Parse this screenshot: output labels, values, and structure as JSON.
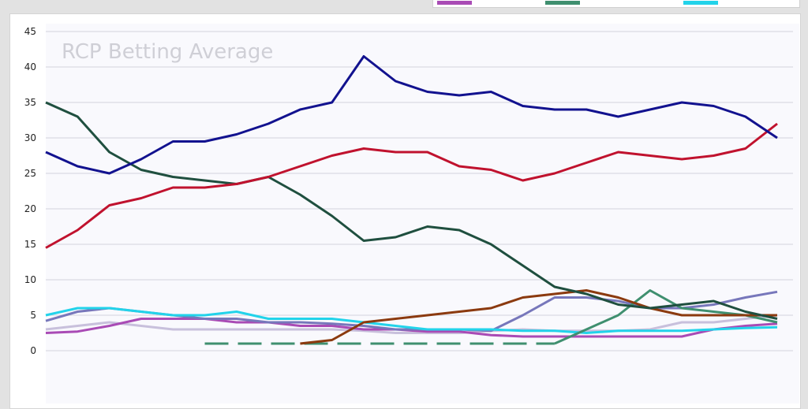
{
  "legend": {
    "swatches": [
      {
        "color": "#a94bb5"
      },
      {
        "color": "#3f8f6f"
      },
      {
        "color": "#22d3ea"
      }
    ]
  },
  "chart_data": {
    "type": "line",
    "title": "RCP Betting Average",
    "xlabel": "",
    "ylabel": "",
    "ylim": [
      0,
      45
    ],
    "yticks": [
      "0",
      "5",
      "10",
      "15",
      "20",
      "25",
      "30",
      "35",
      "40",
      "45"
    ],
    "grid": true,
    "x": [
      0,
      1,
      2,
      3,
      4,
      5,
      6,
      7,
      8,
      9,
      10,
      11,
      12,
      13,
      14,
      15,
      16,
      17,
      18,
      19,
      20,
      21,
      22,
      23
    ],
    "series": [
      {
        "color": "#c8c0dc",
        "values": [
          3,
          3.5,
          4,
          3.5,
          3,
          3,
          3,
          3,
          3,
          3,
          2.8,
          2.5,
          2.5,
          2.5,
          2.8,
          3,
          2.8,
          2.8,
          2.8,
          3,
          4,
          4,
          4.5,
          5
        ]
      },
      {
        "color": "#a94bb5",
        "values": [
          2.5,
          2.7,
          3.5,
          4.5,
          4.5,
          4.5,
          4,
          4,
          3.5,
          3.5,
          3,
          3,
          2.7,
          2.7,
          2.2,
          2,
          2,
          2,
          2,
          2,
          2,
          3,
          3.5,
          3.8
        ]
      },
      {
        "color": "#7777bb",
        "values": [
          4.2,
          5.5,
          6,
          5.5,
          5,
          4.5,
          4.5,
          4,
          4,
          3.8,
          3.5,
          3,
          3,
          3,
          2.8,
          5,
          7.5,
          7.5,
          7,
          6,
          6,
          6.5,
          7.5,
          8.3
        ]
      },
      {
        "color": "#22d3ea",
        "values": [
          5,
          6,
          6,
          5.5,
          5,
          5,
          5.5,
          4.5,
          4.5,
          4.5,
          4,
          3.5,
          3,
          3,
          3,
          2.8,
          2.8,
          2.5,
          2.8,
          2.8,
          2.8,
          3,
          3.2,
          3.3
        ]
      },
      {
        "color": "#3f8f6f",
        "dashed_until": 16,
        "values": [
          null,
          null,
          null,
          null,
          null,
          1,
          1,
          1,
          1,
          1,
          1,
          1,
          1,
          1,
          1,
          1,
          1,
          3,
          5,
          8.5,
          6,
          5.5,
          5,
          4
        ]
      },
      {
        "color": "#8b3a0f",
        "values": [
          null,
          null,
          null,
          null,
          null,
          null,
          null,
          null,
          1,
          1.5,
          4,
          4.5,
          5,
          5.5,
          6,
          7.5,
          8,
          8.5,
          7.5,
          6,
          5,
          5,
          5,
          5
        ]
      },
      {
        "color": "#1f4f3f",
        "values": [
          35,
          33,
          28,
          25.5,
          24.5,
          24,
          23.5,
          24.5,
          22,
          19,
          15.5,
          16,
          17.5,
          17,
          15,
          12,
          9,
          8,
          6.5,
          6,
          6.5,
          7,
          5.5,
          4.5
        ]
      },
      {
        "color": "#c0122e",
        "values": [
          14.5,
          17,
          20.5,
          21.5,
          23,
          23,
          23.5,
          24.5,
          26,
          27.5,
          28.5,
          28,
          28,
          26,
          25.5,
          24,
          25,
          26.5,
          28,
          27.5,
          27,
          27.5,
          28.5,
          32
        ]
      },
      {
        "color": "#12128f",
        "values": [
          28,
          26,
          25,
          27,
          29.5,
          29.5,
          30.5,
          32,
          34,
          35,
          41.5,
          38,
          36.5,
          36,
          36.5,
          34.5,
          34,
          34,
          33,
          34,
          35,
          34.5,
          33,
          30
        ]
      }
    ]
  }
}
